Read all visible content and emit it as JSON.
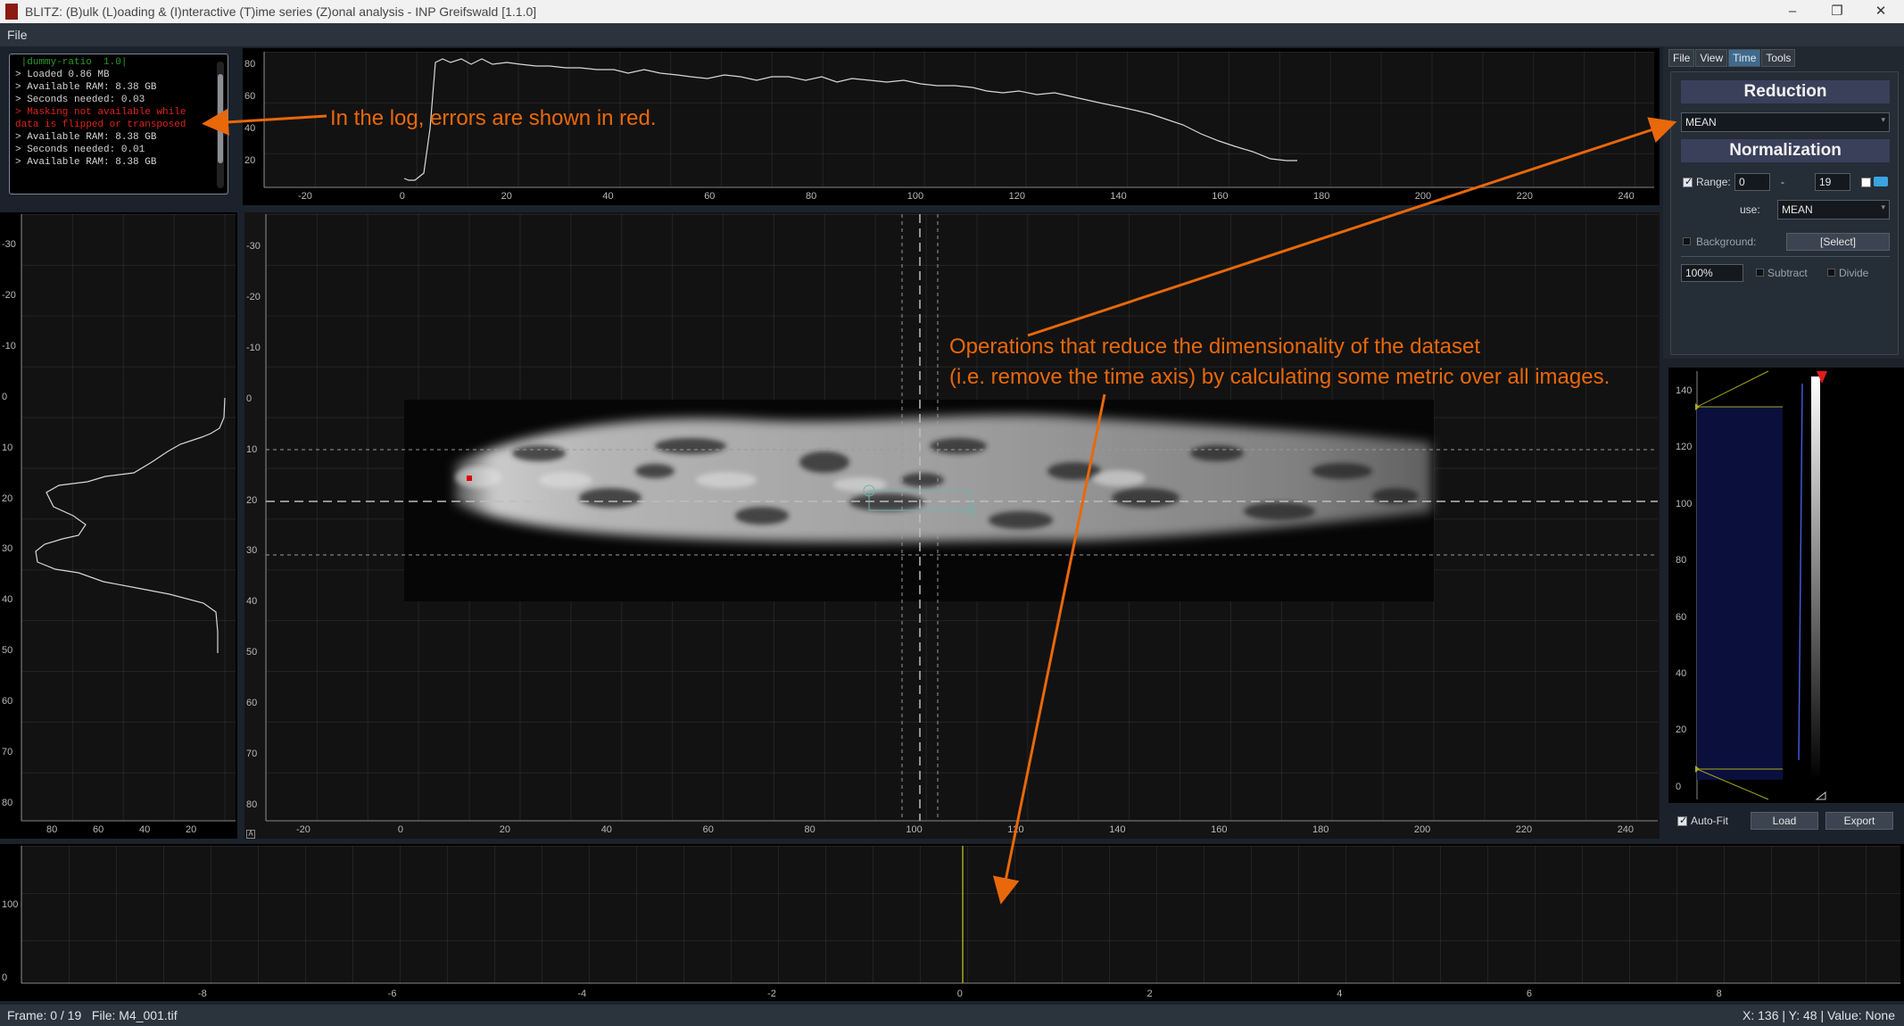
{
  "window": {
    "title": "BLITZ: (B)ulk (L)oading & (I)nteractive (T)ime series (Z)onal analysis - INP Greifswald [1.1.0]",
    "controls": [
      "–",
      "❐",
      "✕"
    ]
  },
  "menubar": {
    "file_label": "File"
  },
  "log": {
    "lines": [
      {
        "text": " |dummy-ratio  1.0|",
        "type": "g"
      },
      {
        "text": "> Loaded 0.86 MB",
        "type": "l"
      },
      {
        "text": "> Available RAM: 8.38 GB",
        "type": "l"
      },
      {
        "text": "> Seconds needed: 0.03",
        "type": "l"
      },
      {
        "text": "> Masking not available while",
        "type": "e"
      },
      {
        "text": "data is flipped or transposed",
        "type": "e"
      },
      {
        "text": "> Available RAM: 8.38 GB",
        "type": "l"
      },
      {
        "text": "> Seconds needed: 0.01",
        "type": "l"
      },
      {
        "text": "> Available RAM: 8.38 GB",
        "type": "l"
      }
    ]
  },
  "top_plot": {
    "y_ticks": [
      "80",
      "60",
      "40",
      "20"
    ],
    "x_ticks": [
      "-20",
      "0",
      "20",
      "40",
      "60",
      "80",
      "100",
      "120",
      "140",
      "160",
      "180",
      "200",
      "220",
      "240"
    ]
  },
  "left_plot": {
    "y_ticks": [
      "-30",
      "-20",
      "-10",
      "0",
      "10",
      "20",
      "30",
      "40",
      "50",
      "60",
      "70",
      "80"
    ],
    "x_ticks": [
      "80",
      "60",
      "40",
      "20"
    ]
  },
  "image_view": {
    "y_ticks": [
      "-30",
      "-20",
      "-10",
      "0",
      "10",
      "20",
      "30",
      "40",
      "50",
      "60",
      "70",
      "80"
    ],
    "x_ticks": [
      "-20",
      "0",
      "20",
      "40",
      "60",
      "80",
      "100",
      "120",
      "140",
      "160",
      "180",
      "200",
      "220",
      "240"
    ],
    "corner_button": "A"
  },
  "histogram": {
    "y_ticks": [
      "140",
      "120",
      "100",
      "80",
      "60",
      "40",
      "20",
      "0"
    ],
    "autofit_label": "Auto-Fit",
    "autofit_checked": true,
    "load_label": "Load",
    "export_label": "Export"
  },
  "timeline": {
    "y_ticks": [
      "100",
      "0"
    ],
    "x_ticks": [
      "-8",
      "-6",
      "-4",
      "-2",
      "0",
      "2",
      "4",
      "6",
      "8"
    ]
  },
  "side_panel": {
    "tabs": [
      "File",
      "View",
      "Time",
      "Tools"
    ],
    "active_tab": "Time",
    "reduction_header": "Reduction",
    "reduction_value": "MEAN",
    "normalization_header": "Normalization",
    "range_label": "Range:",
    "range_checked": true,
    "range_from": "0",
    "range_dash": "-",
    "range_to": "19",
    "use_label": "use:",
    "use_value": "MEAN",
    "background_label": "Background:",
    "select_label": "[Select]",
    "percent_value": "100%",
    "subtract_label": "Subtract",
    "divide_label": "Divide"
  },
  "status": {
    "left": "Frame: 0 / 19   File: M4_001.tif",
    "right": "X: 136 | Y: 48 | Value: None"
  },
  "annotations": {
    "log_note": "In the log, errors are shown in red.",
    "reduction_note_line1": "Operations that reduce the dimensionality of the dataset",
    "reduction_note_line2": "(i.e. remove the time axis) by calculating some metric over all images."
  },
  "colors": {
    "annotation": "#e8680a",
    "log_error": "#e0241b",
    "window_bg": "#1b222b",
    "panel_header": "#3a3f5a",
    "active_tab": "#3f6a8e",
    "lut_blue": "#0a0f3c",
    "timeline_marker": "#a8a81e"
  }
}
